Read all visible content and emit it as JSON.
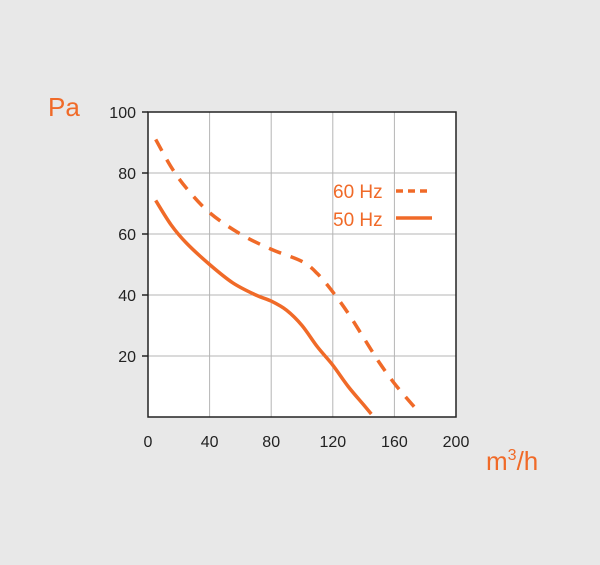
{
  "colors": {
    "background": "#e8e8e8",
    "plot_background": "#ffffff",
    "grid": "#b5b5b5",
    "frame": "#222222",
    "series": "#f06a28"
  },
  "chart_data": {
    "type": "line",
    "title": "",
    "ylabel": "Pa",
    "xlabel_base": "m",
    "xlabel_sup": "3",
    "xlabel_tail": "/h",
    "xlim": [
      0,
      200
    ],
    "ylim": [
      0,
      100
    ],
    "x_ticks": [
      "0",
      "40",
      "80",
      "120",
      "160",
      "200"
    ],
    "y_ticks": [
      "20",
      "40",
      "60",
      "80",
      "100"
    ],
    "grid": true,
    "legend_position": "top-right",
    "series": [
      {
        "name": "60 Hz",
        "style": "dashed",
        "points": [
          [
            5,
            91
          ],
          [
            15,
            82
          ],
          [
            25,
            75
          ],
          [
            40,
            67
          ],
          [
            60,
            60
          ],
          [
            80,
            55
          ],
          [
            100,
            51
          ],
          [
            110,
            47
          ],
          [
            120,
            41
          ],
          [
            130,
            34
          ],
          [
            140,
            26
          ],
          [
            150,
            18
          ],
          [
            160,
            11
          ],
          [
            170,
            5
          ],
          [
            177,
            1
          ]
        ]
      },
      {
        "name": "50 Hz",
        "style": "solid",
        "points": [
          [
            5,
            71
          ],
          [
            15,
            63
          ],
          [
            25,
            57
          ],
          [
            40,
            50
          ],
          [
            55,
            44
          ],
          [
            70,
            40
          ],
          [
            80,
            38
          ],
          [
            90,
            35
          ],
          [
            100,
            30
          ],
          [
            110,
            23
          ],
          [
            120,
            17
          ],
          [
            130,
            10
          ],
          [
            140,
            4
          ],
          [
            145,
            1
          ]
        ]
      }
    ]
  }
}
